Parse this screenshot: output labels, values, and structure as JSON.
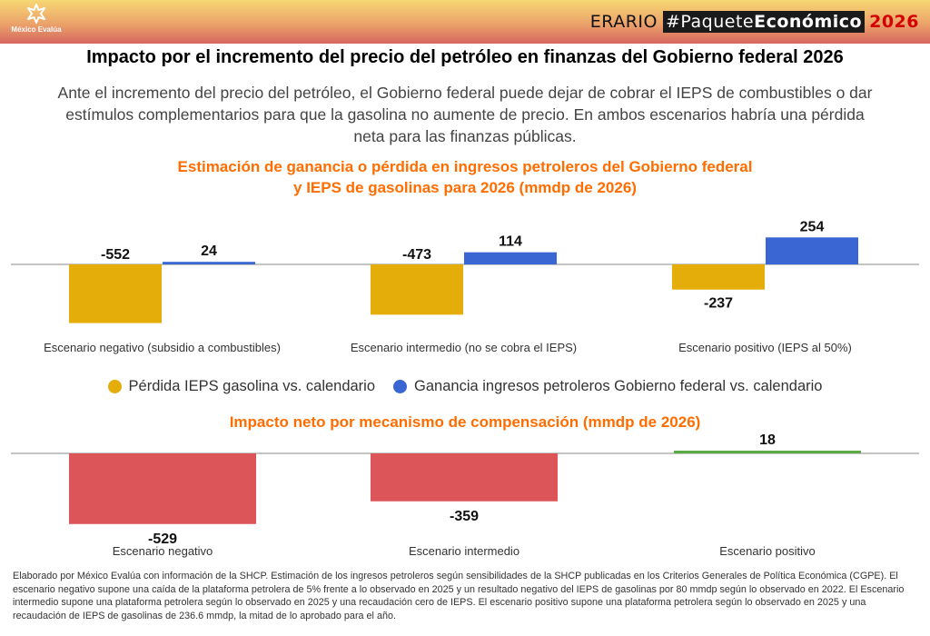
{
  "header": {
    "logo_icon": "star-burst-icon",
    "logo_text": "México Evalúa",
    "brand_erario": "ERARIO",
    "brand_tag_regular": "#Paquete",
    "brand_tag_bold": "Económico",
    "brand_year": "2026"
  },
  "title": "Impacto por el incremento del precio del petróleo en finanzas del Gobierno federal 2026",
  "subtitle": "Ante el incremento del precio del petróleo, el Gobierno federal puede dejar de cobrar el IEPS de combustibles o dar estímulos complementarios para que la gasolina no aumente de precio. En ambos escenarios habría una pérdida neta para las finanzas públicas.",
  "colors": {
    "gold": "#e4ad09",
    "blue": "#3a66d3",
    "red": "#dc5558",
    "green": "#5aaa46",
    "orange_title": "#ff6d01"
  },
  "chart_data": [
    {
      "type": "bar",
      "title_line1": "Estimación de ganancia o pérdida en ingresos petroleros del Gobierno federal",
      "title_line2": "y IEPS de gasolinas para 2026 (mmdp de 2026)",
      "categories": [
        "Escenario negativo (subsidio a combustibles)",
        "Escenario intermedio (no se cobra el IEPS)",
        "Escenario positivo (IEPS al 50%)"
      ],
      "series": [
        {
          "name": "Pérdida IEPS gasolina vs. calendario",
          "color": "#e4ad09",
          "values": [
            -552,
            -473,
            -237
          ]
        },
        {
          "name": "Ganancia ingresos petroleros Gobierno federal vs. calendario",
          "color": "#3a66d3",
          "values": [
            24,
            114,
            254
          ]
        }
      ],
      "xlabel": "",
      "ylabel": "",
      "ylim": [
        -600,
        300
      ],
      "grid": false,
      "legend": "bottom"
    },
    {
      "type": "bar",
      "title": "Impacto neto por mecanismo de compensación (mmdp de 2026)",
      "categories": [
        "Escenario negativo",
        "Escenario intermedio",
        "Escenario positivo"
      ],
      "values": [
        -529,
        -359,
        18
      ],
      "colors": [
        "#dc5558",
        "#dc5558",
        "#5aaa46"
      ],
      "xlabel": "",
      "ylabel": "",
      "ylim": [
        -600,
        100
      ],
      "grid": false,
      "legend": "none"
    }
  ],
  "footnote": "Elaborado por México Evalúa con información de la SHCP. Estimación de los ingresos petroleros según sensibilidades de la SHCP publicadas en los Criterios Generales de Política Económica (CGPE).  El escenario negativo supone una caída de la plataforma petrolera de 5% frente a lo observado en 2025 y un resultado negativo del IEPS de gasolinas por 80 mmdp según lo observado en 2022. El Escenario intermedio supone una plataforma petrolera según lo observado en 2025 y una recaudación cero de IEPS. El escenario positivo supone una plataforma petrolera según lo observado en 2025 y una recaudación de IEPS de gasolinas de 236.6 mmdp, la mitad de lo aprobado para el año."
}
